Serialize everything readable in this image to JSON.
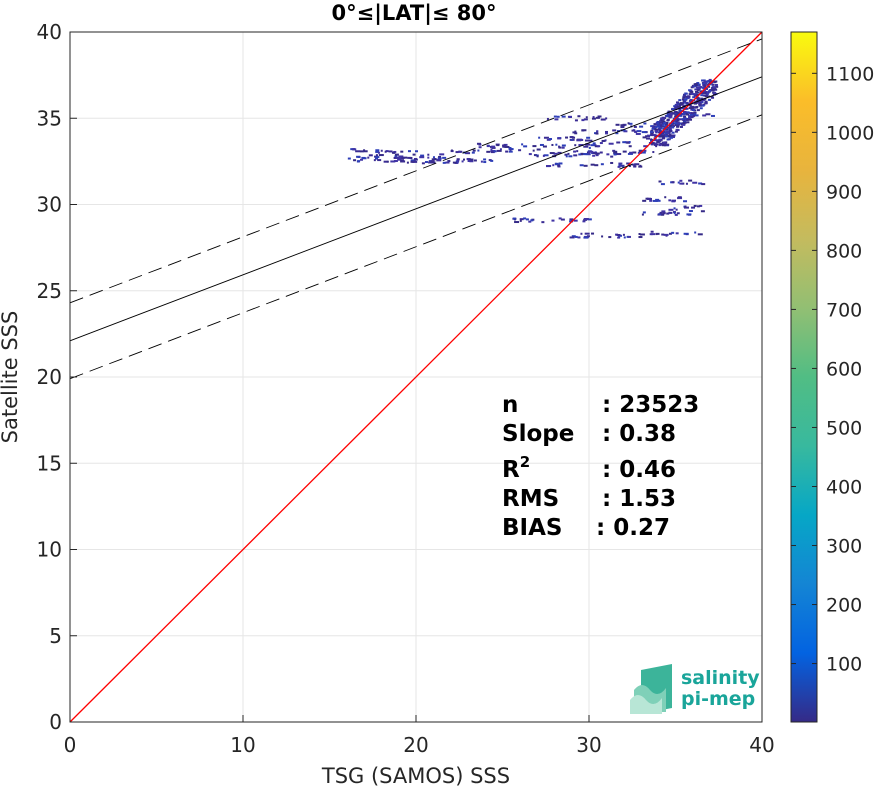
{
  "chart_data": {
    "type": "heatmap",
    "title": "0°≤|LAT|≤ 80°",
    "xlabel": "TSG (SAMOS) SSS",
    "ylabel": "Satellite SSS",
    "xlim": [
      0,
      40
    ],
    "ylim": [
      0,
      40
    ],
    "xticks": [
      0,
      10,
      20,
      30,
      40
    ],
    "yticks": [
      0,
      5,
      10,
      15,
      20,
      25,
      30,
      35,
      40
    ],
    "grid": true,
    "colorbar": {
      "colormap": "parula",
      "range": [
        1,
        1170
      ],
      "ticks": [
        100,
        200,
        300,
        400,
        500,
        600,
        700,
        800,
        900,
        1000,
        1100
      ]
    },
    "lines": [
      {
        "label": "1:1 line",
        "style": "solid",
        "color": "#ff0000",
        "x": [
          0,
          40
        ],
        "y": [
          0,
          40
        ]
      },
      {
        "label": "regression",
        "style": "solid",
        "color": "#000000",
        "x": [
          0,
          40
        ],
        "y": [
          22.1,
          37.4
        ]
      },
      {
        "label": "regression + 2.2",
        "style": "dashed",
        "color": "#000000",
        "x": [
          0,
          40
        ],
        "y": [
          24.3,
          39.6
        ]
      },
      {
        "label": "regression - 2.2",
        "style": "dashed",
        "color": "#000000",
        "x": [
          0,
          40
        ],
        "y": [
          19.9,
          35.2
        ]
      }
    ],
    "density_segments": [
      {
        "x": [
          16.0,
          20.0
        ],
        "y": 33.1
      },
      {
        "x": [
          16.5,
          21.5
        ],
        "y": 32.8
      },
      {
        "x": [
          16.0,
          23.0
        ],
        "y": 32.6
      },
      {
        "x": [
          19.0,
          24.5
        ],
        "y": 32.5
      },
      {
        "x": [
          22.0,
          27.0
        ],
        "y": 33.1
      },
      {
        "x": [
          23.5,
          30.0
        ],
        "y": 33.4
      },
      {
        "x": [
          26.0,
          31.5
        ],
        "y": 32.9
      },
      {
        "x": [
          27.5,
          33.0
        ],
        "y": 32.3
      },
      {
        "x": [
          27.0,
          31.0
        ],
        "y": 33.8
      },
      {
        "x": [
          29.0,
          34.5
        ],
        "y": 34.2
      },
      {
        "x": [
          30.0,
          34.5
        ],
        "y": 33.5
      },
      {
        "x": [
          31.5,
          34.5
        ],
        "y": 34.6
      },
      {
        "x": [
          27.5,
          31.0
        ],
        "y": 35.0
      },
      {
        "x": [
          29.0,
          34.0
        ],
        "y": 33.0
      },
      {
        "x": [
          25.5,
          30.0
        ],
        "y": 29.1
      },
      {
        "x": [
          28.5,
          33.0
        ],
        "y": 28.2
      },
      {
        "x": [
          33.5,
          36.5
        ],
        "y": 28.3
      },
      {
        "x": [
          32.5,
          36.5
        ],
        "y": 29.5
      },
      {
        "x": [
          33.0,
          36.0
        ],
        "y": 30.3
      },
      {
        "x": [
          34.0,
          36.5
        ],
        "y": 31.3
      },
      {
        "x": [
          34.5,
          36.5
        ],
        "y": 29.8
      },
      {
        "x": [
          33.0,
          35.0
        ],
        "y": 33.9
      },
      {
        "x": [
          34.5,
          37.2
        ],
        "y": 35.2
      }
    ],
    "dense_core": {
      "x": [
        33.5,
        37.3
      ],
      "y": [
        33.5,
        37.3
      ]
    },
    "annotations": {
      "n_label": "n",
      "n_value": ": 23523",
      "slope_label": "Slope",
      "slope_value": ": 0.38",
      "r2_label": "R",
      "r2_sup": "2",
      "r2_value": ": 0.46",
      "rms_label": "RMS",
      "rms_value": ": 1.53",
      "bias_label": "BIAS",
      "bias_value": ": 0.27"
    }
  },
  "logo": {
    "line1": "salinity",
    "line2": "pi-mep"
  }
}
